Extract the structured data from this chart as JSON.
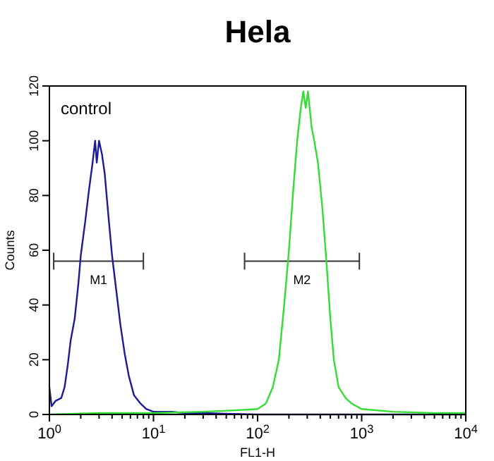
{
  "chart_data": {
    "type": "line",
    "title": "Hela",
    "xlabel": "FL1-H",
    "ylabel": "Counts",
    "log": "x",
    "grid": false,
    "legend": false,
    "xlim": [
      1,
      10000
    ],
    "ylim": [
      0,
      120
    ],
    "xticks": [
      {
        "value": 1,
        "label": "10$^{0}$"
      },
      {
        "value": 10,
        "label": "10$^{1}$"
      },
      {
        "value": 100,
        "label": "10$^{2}$"
      },
      {
        "value": 1000,
        "label": "10$^{3}$"
      },
      {
        "value": 10000,
        "label": "10$^{4}$"
      }
    ],
    "yticks": [
      0,
      20,
      40,
      60,
      80,
      100,
      120
    ],
    "annotations": [
      "control"
    ],
    "series": [
      {
        "name": "M1",
        "color": "#333333",
        "x": [
          1.1,
          8
        ],
        "values": [
          56,
          56
        ]
      },
      {
        "name": "M2",
        "color": "#333333",
        "x": [
          75,
          950
        ],
        "values": [
          56,
          56
        ]
      },
      {
        "color": "#1a1a9a",
        "x": [
          1,
          1.05,
          1.15,
          1.3,
          1.4,
          1.5,
          1.6,
          1.75,
          1.9,
          2,
          2.2,
          2.4,
          2.6,
          2.75,
          2.85,
          3,
          3.2,
          3.4,
          3.7,
          4,
          4.4,
          4.8,
          5.3,
          5.8,
          6.5,
          7.5,
          8.5,
          10,
          15,
          20,
          30,
          50,
          100,
          10000
        ],
        "values": [
          10,
          3,
          5,
          6,
          10,
          18,
          27,
          35,
          48,
          58,
          70,
          82,
          92,
          100,
          92,
          100,
          95,
          88,
          72,
          58,
          45,
          33,
          22,
          14,
          7,
          4,
          2,
          1,
          1,
          0.5,
          0.5,
          0.3,
          0,
          0
        ]
      },
      {
        "color": "#33dd33",
        "x": [
          1,
          3,
          10,
          30,
          60,
          100,
          120,
          140,
          160,
          180,
          200,
          220,
          240,
          260,
          275,
          290,
          305,
          330,
          350,
          380,
          420,
          460,
          500,
          540,
          600,
          700,
          800,
          1000,
          2000,
          5000,
          10000
        ],
        "values": [
          0,
          0.5,
          0.5,
          1,
          1.5,
          2,
          4,
          10,
          20,
          40,
          60,
          82,
          100,
          112,
          118,
          112,
          118,
          105,
          100,
          92,
          75,
          55,
          35,
          20,
          10,
          6,
          4,
          2,
          1,
          0.5,
          0.5
        ]
      }
    ]
  }
}
